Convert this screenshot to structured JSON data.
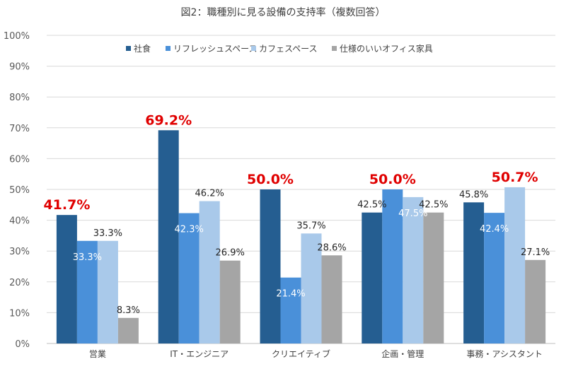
{
  "chart_data": {
    "type": "bar",
    "title": "図2：職種別に見る設備の支持率（複数回答）",
    "categories": [
      "営業",
      "IT・エンジニア",
      "クリエイティブ",
      "企画・管理",
      "事務・アシスタント"
    ],
    "series": [
      {
        "name": "社食",
        "color": "#255e91",
        "values": [
          41.7,
          69.2,
          50.0,
          42.5,
          45.8
        ]
      },
      {
        "name": "リフレッシュスペース",
        "color": "#4a90d9",
        "values": [
          33.3,
          42.3,
          21.4,
          50.0,
          42.4
        ]
      },
      {
        "name": "カフェスペース",
        "color": "#a9c9ea",
        "values": [
          33.3,
          46.2,
          35.7,
          47.5,
          50.7
        ]
      },
      {
        "name": "仕様のいいオフィス家具",
        "color": "#a5a5a5",
        "values": [
          8.3,
          26.9,
          28.6,
          42.5,
          27.1
        ]
      }
    ],
    "data_labels": [
      [
        "41.7%",
        "33.3%",
        "33.3%",
        "8.3%"
      ],
      [
        "69.2%",
        "42.3%",
        "46.2%",
        "26.9%"
      ],
      [
        "50.0%",
        "21.4%",
        "35.7%",
        "28.6%"
      ],
      [
        "42.5%",
        "50.0%",
        "47.5%",
        "42.5%"
      ],
      [
        "45.8%",
        "42.4%",
        "50.7%",
        "27.1%"
      ]
    ],
    "highlighted": [
      {
        "category": "営業",
        "series": "社食"
      },
      {
        "category": "IT・エンジニア",
        "series": "社食"
      },
      {
        "category": "クリエイティブ",
        "series": "社食"
      },
      {
        "category": "企画・管理",
        "series": "リフレッシュスペース"
      },
      {
        "category": "事務・アシスタント",
        "series": "カフェスペース"
      }
    ],
    "highlight_color": "#e00000",
    "ylim": [
      0,
      100
    ],
    "yticks": [
      "0%",
      "10%",
      "20%",
      "30%",
      "40%",
      "50%",
      "60%",
      "70%",
      "80%",
      "90%",
      "100%"
    ],
    "grid": true,
    "legend_position": "top"
  }
}
